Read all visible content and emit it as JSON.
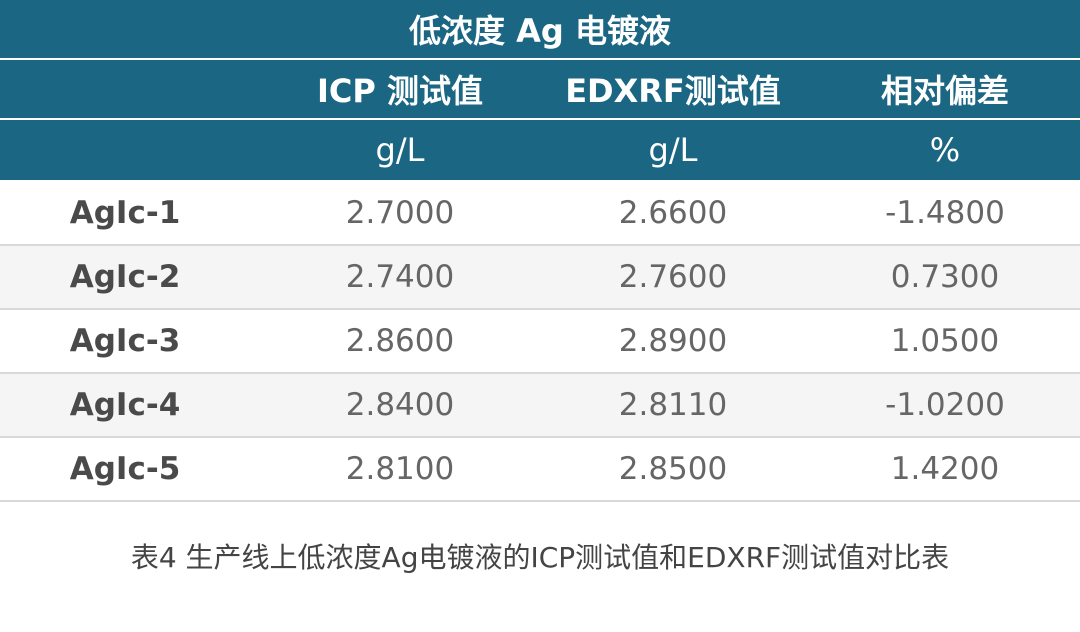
{
  "title": "低浓度 Ag 电镀液",
  "table": {
    "header": [
      "ICP 测试值",
      "EDXRF测试值",
      "相对偏差"
    ],
    "units": [
      "g/L",
      "g/L",
      "%"
    ],
    "rows": [
      [
        "AgIc-1",
        "2.7000",
        "2.6600",
        "-1.4800"
      ],
      [
        "AgIc-2",
        "2.7400",
        "2.7600",
        "0.7300"
      ],
      [
        "AgIc-3",
        "2.8600",
        "2.8900",
        "1.0500"
      ],
      [
        "AgIc-4",
        "2.8400",
        "2.8110",
        "-1.0200"
      ],
      [
        "AgIc-5",
        "2.8100",
        "2.8500",
        "1.4200"
      ]
    ]
  },
  "caption": "表4 生产线上低浓度Ag电镀液的ICP测试值和EDXRF测试值对比表"
}
